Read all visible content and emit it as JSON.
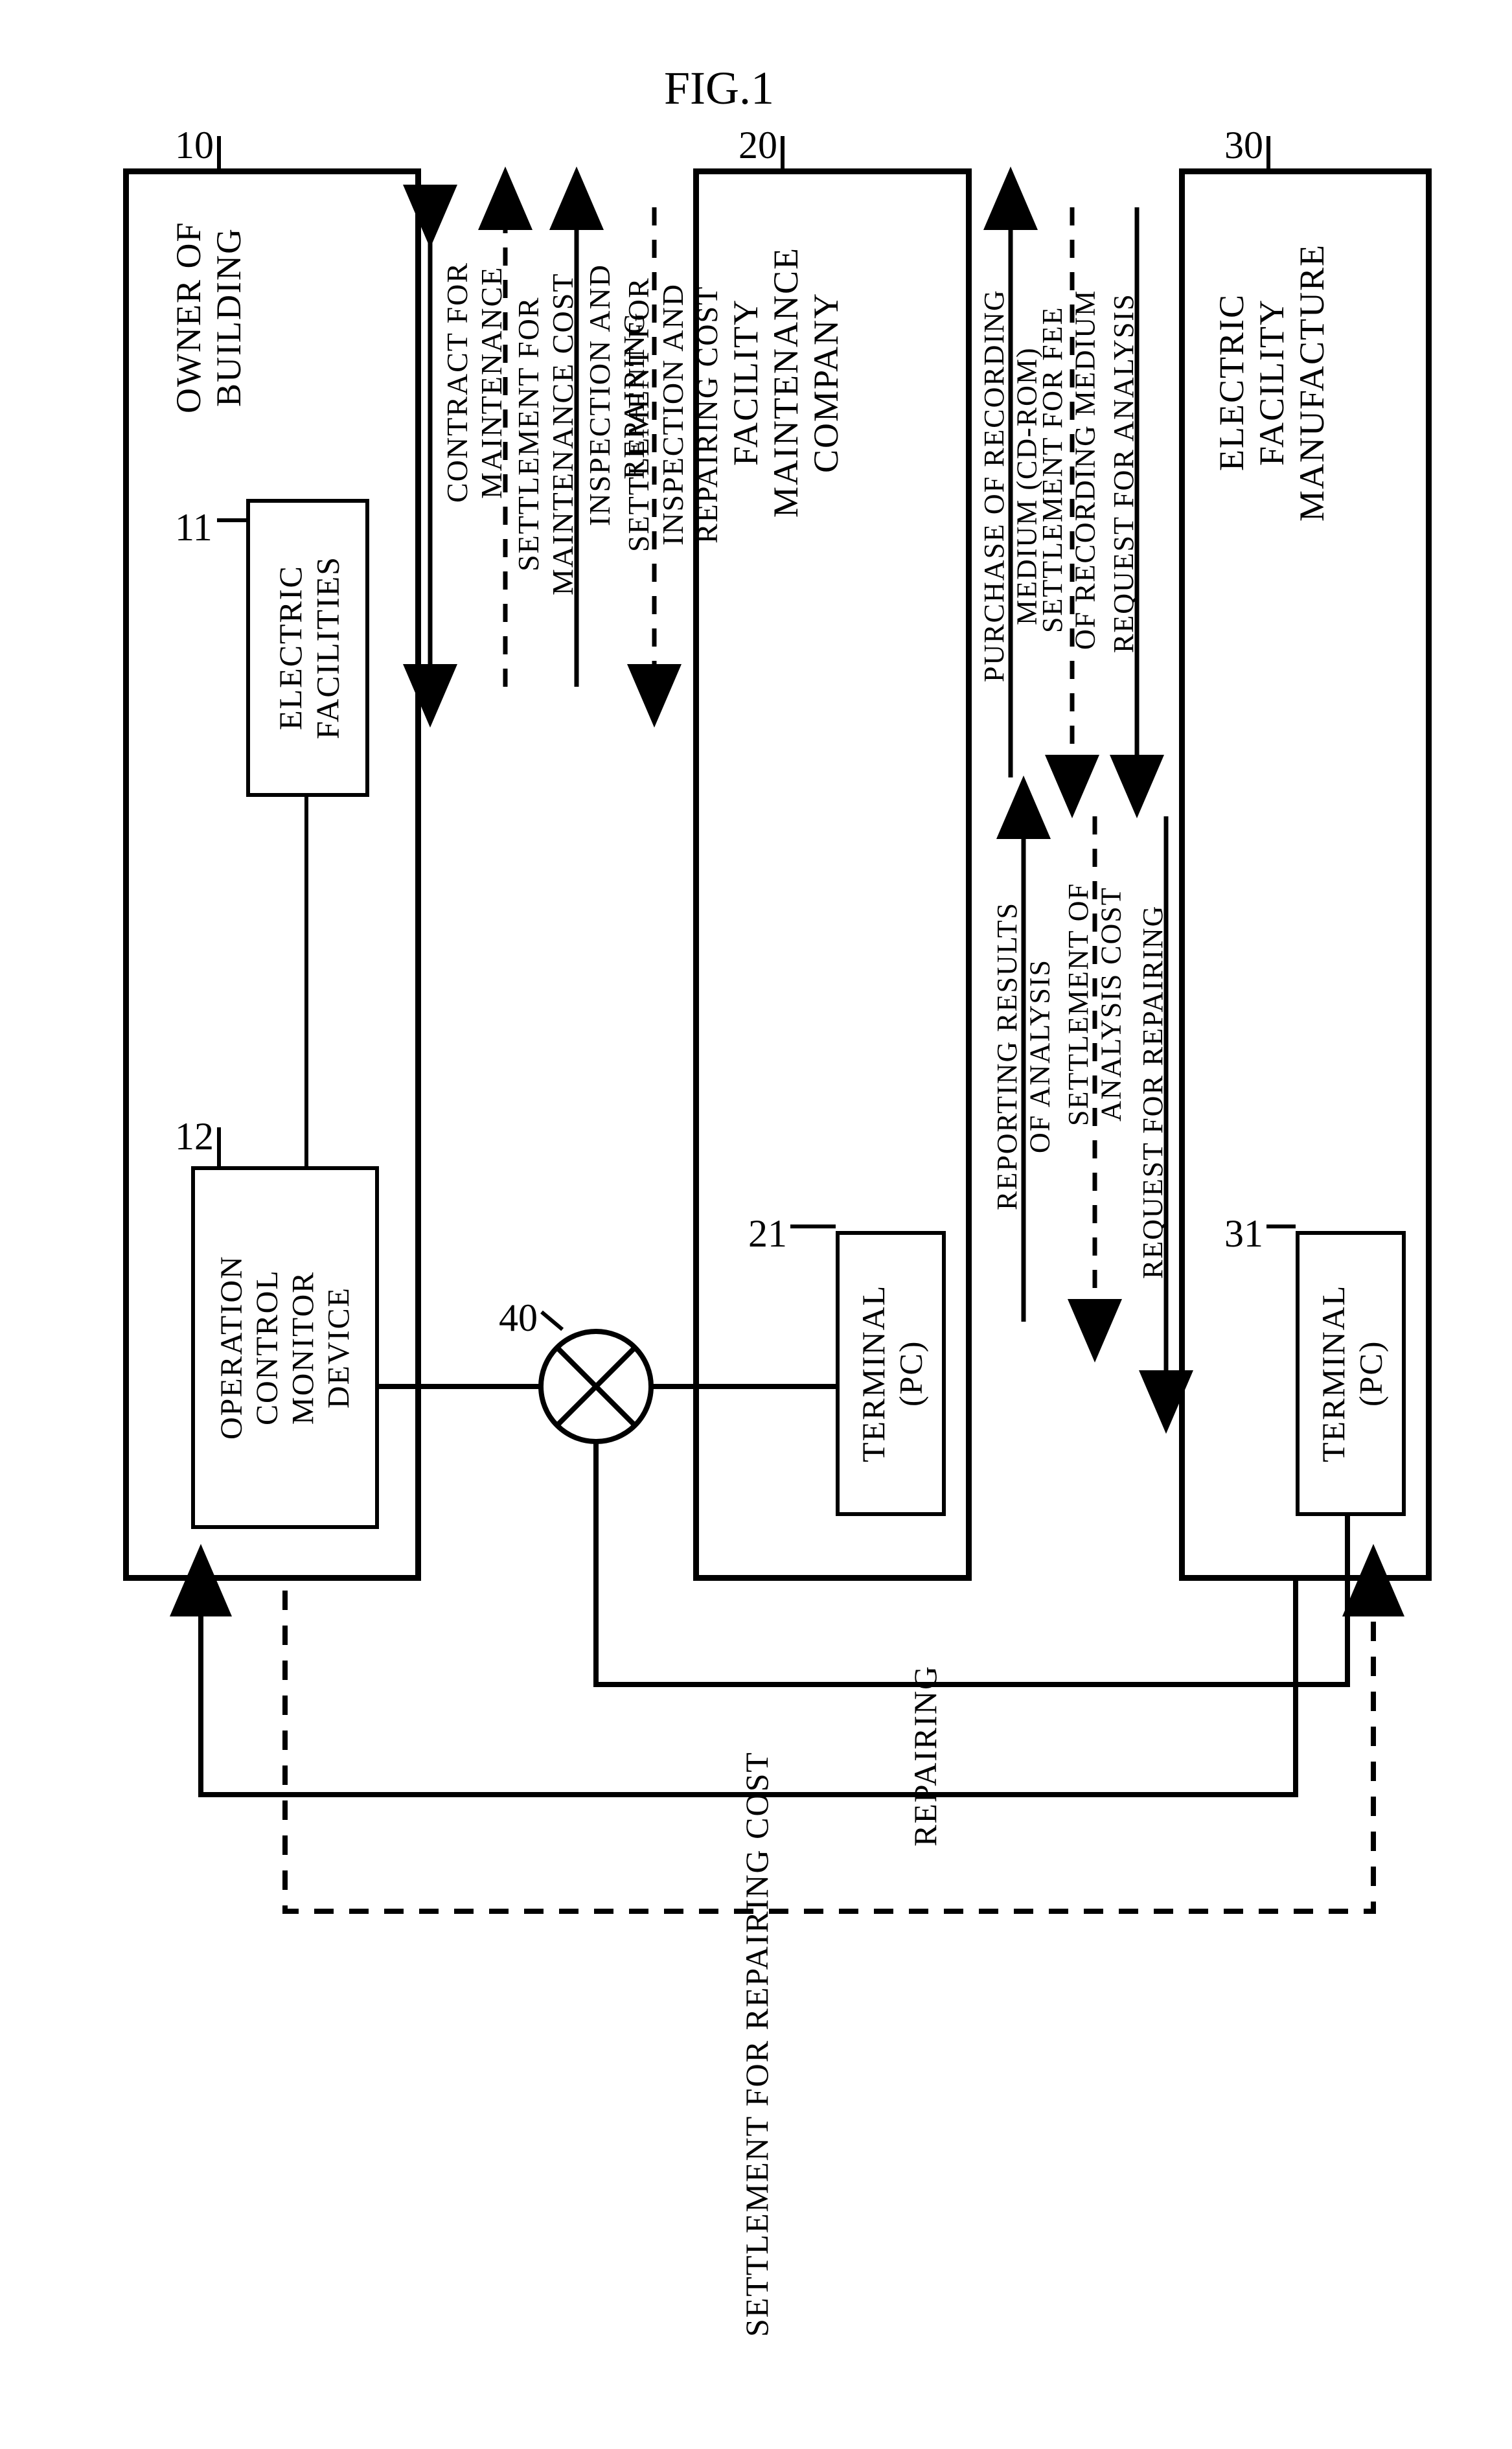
{
  "figure": {
    "title": "FIG.1"
  },
  "blocks": {
    "owner": {
      "label": "OWNER OF\nBUILDING",
      "num": "10"
    },
    "elec": {
      "label": "ELECTRIC\nFACILITIES",
      "num": "11"
    },
    "ocmd": {
      "label": "OPERATION\nCONTROL\nMONITOR\nDEVICE",
      "num": "12"
    },
    "fmc": {
      "label": "FACILITY\nMAINTENANCE\nCOMPANY",
      "num": "20"
    },
    "fmc_pc": {
      "label": "TERMINAL\n(PC)",
      "num": "21"
    },
    "efm": {
      "label": "ELECTRIC\nFACILITY\nMANUFACTURE",
      "num": "30"
    },
    "efm_pc": {
      "label": "TERMINAL\n(PC)",
      "num": "31"
    },
    "net": {
      "num": "40"
    }
  },
  "arrows_left": {
    "a1": "CONTRACT FOR\nMAINTENANCE",
    "a2": "SETTLEMENT FOR\nMAINTENANCE COST",
    "a3": "INSPECTION AND\nREPAIRING",
    "a4": "SETTLEMENT FOR\nINSPECTION AND\nREPAIRING COST"
  },
  "arrows_right": {
    "b1": "PURCHASE OF RECORDING\nMEDIUM (CD-ROM)",
    "b2": "SETTLEMENT FOR FEE\nOF RECORDING MEDIUM",
    "b3": "REQUEST FOR ANALYSIS",
    "b4": "REPORTING RESULTS\nOF ANALYSIS",
    "b5": "SETTLEMENT OF\nANALYSIS COST",
    "b6": "REQUEST FOR REPAIRING"
  },
  "bottom": {
    "repairing": "REPAIRING",
    "settle": "SETTLEMENT FOR REPAIRING COST"
  },
  "style": {
    "border_thick": 9,
    "border_thin": 6,
    "font_block": 54,
    "font_arrow": 46,
    "font_bottom": 50
  }
}
